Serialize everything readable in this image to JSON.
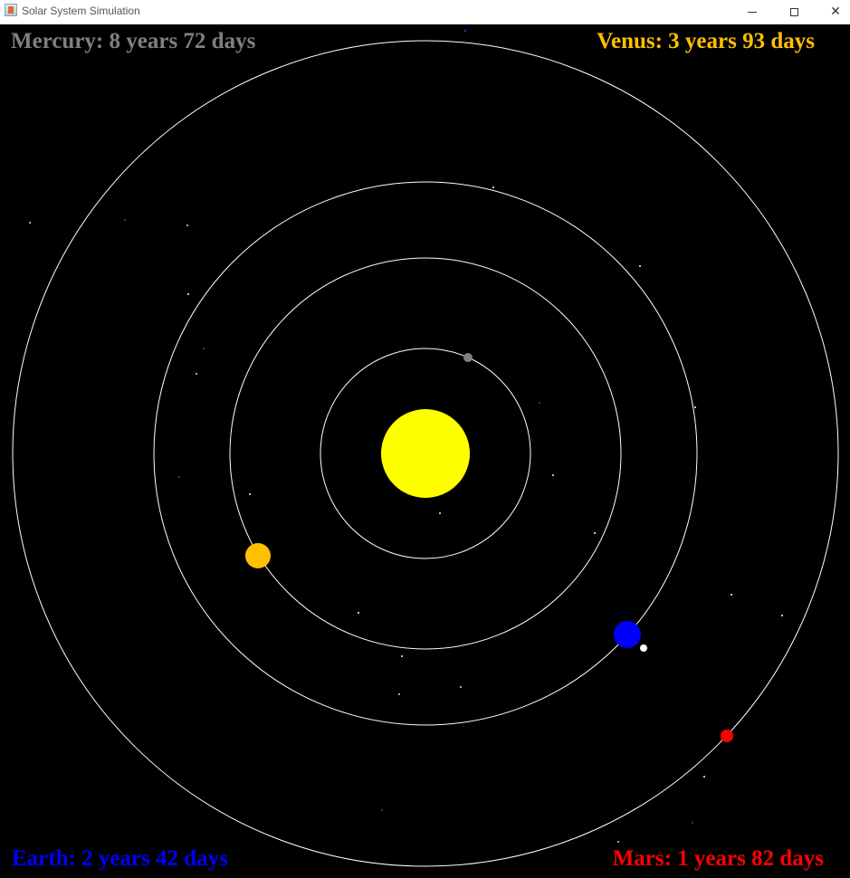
{
  "window": {
    "title": "Solar System Simulation",
    "controls": {
      "minimize": "minimize",
      "maximize": "maximize",
      "close": "close"
    }
  },
  "labels": {
    "mercury": "Mercury: 8 years 72 days",
    "venus": "Venus: 3 years 93 days",
    "earth": "Earth: 2 years 42 days",
    "mars": "Mars: 1 years 82 days"
  },
  "colors": {
    "mercury": "#808080",
    "venus": "#ffc000",
    "earth": "#0000ff",
    "mars": "#ff0000",
    "sun": "#ffff00",
    "orbit": "#ffffff",
    "moon": "#ffffff",
    "background": "#000000"
  },
  "icons": {
    "app": "java-app-icon",
    "minimize": "minimize-icon",
    "maximize": "maximize-icon",
    "close": "close-icon"
  }
}
